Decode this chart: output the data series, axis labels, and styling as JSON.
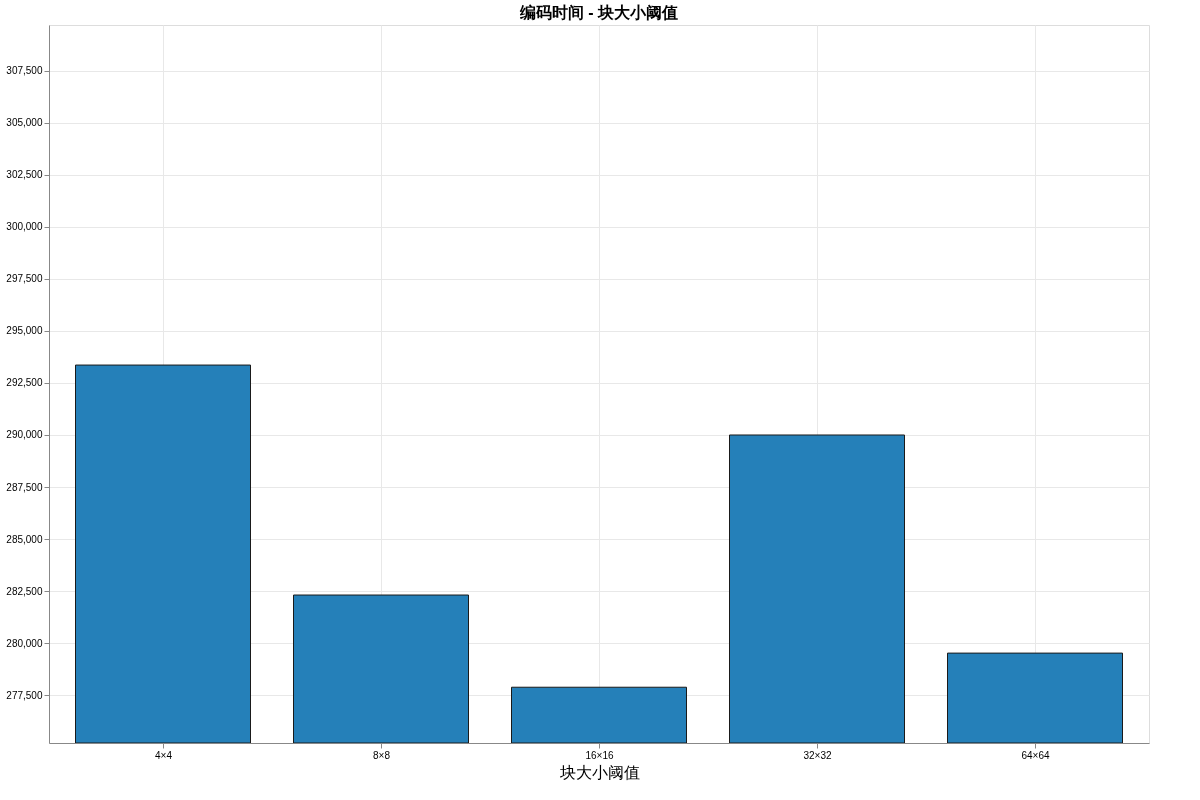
{
  "chart_data": {
    "type": "bar",
    "title": "编码时间 - 块大小阈值",
    "xlabel": "块大小阈值",
    "categories": [
      "4×4",
      "8×8",
      "16×16",
      "32×32",
      "64×64"
    ],
    "values": [
      293360,
      282310,
      277880,
      290000,
      279520
    ],
    "color": "#2580b9",
    "ylim": [
      275200,
      309700
    ],
    "yticks": [
      {
        "value": 277500,
        "label": "277,500"
      },
      {
        "value": 280000,
        "label": "280,000"
      },
      {
        "value": 282500,
        "label": "282,500"
      },
      {
        "value": 285000,
        "label": "285,000"
      },
      {
        "value": 287500,
        "label": "287,500"
      },
      {
        "value": 290000,
        "label": "290,000"
      },
      {
        "value": 292500,
        "label": "292,500"
      },
      {
        "value": 295000,
        "label": "295,000"
      },
      {
        "value": 297500,
        "label": "297,500"
      },
      {
        "value": 300000,
        "label": "300,000"
      },
      {
        "value": 302500,
        "label": "302,500"
      },
      {
        "value": 305000,
        "label": "305,000"
      },
      {
        "value": 307500,
        "label": "307,500"
      }
    ],
    "grid": true
  }
}
